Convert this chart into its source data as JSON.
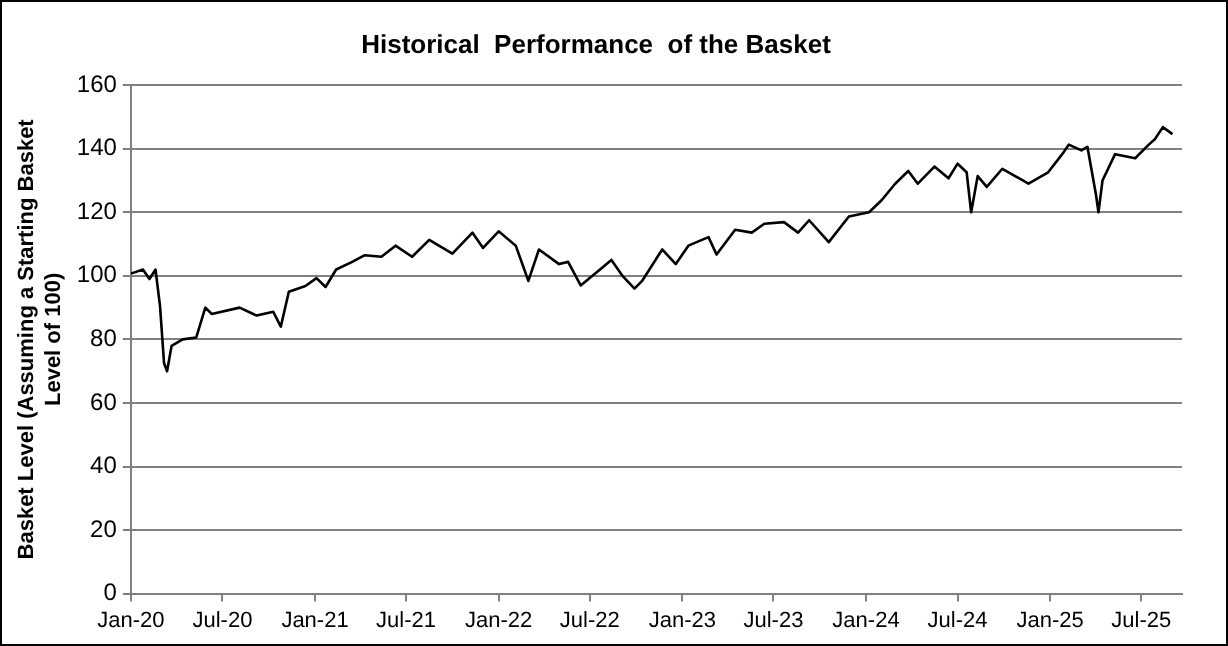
{
  "chart_data": {
    "type": "line",
    "title": "Historical  Performance  of the Basket",
    "ylabel": "Basket Level (Assuming a Starting Basket Level of 100)",
    "x": [
      "2020-01-01",
      "2020-01-25",
      "2020-02-07",
      "2020-02-19",
      "2020-02-28",
      "2020-03-07",
      "2020-03-13",
      "2020-03-22",
      "2020-04-13",
      "2020-05-10",
      "2020-05-28",
      "2020-06-10",
      "2020-08-04",
      "2020-09-07",
      "2020-10-10",
      "2020-10-25",
      "2020-11-10",
      "2020-12-13",
      "2021-01-04",
      "2021-01-22",
      "2021-02-12",
      "2021-03-16",
      "2021-04-10",
      "2021-05-13",
      "2021-06-10",
      "2021-07-13",
      "2021-08-16",
      "2021-10-01",
      "2021-11-10",
      "2021-12-01",
      "2022-01-01",
      "2022-02-04",
      "2022-03-01",
      "2022-03-22",
      "2022-05-01",
      "2022-05-19",
      "2022-06-13",
      "2022-07-25",
      "2022-08-13",
      "2022-09-04",
      "2022-09-28",
      "2022-10-13",
      "2022-11-22",
      "2022-12-19",
      "2023-01-13",
      "2023-02-22",
      "2023-03-10",
      "2023-04-16",
      "2023-05-19",
      "2023-06-13",
      "2023-07-22",
      "2023-08-19",
      "2023-09-10",
      "2023-10-19",
      "2023-11-28",
      "2024-01-07",
      "2024-02-01",
      "2024-02-28",
      "2024-03-25",
      "2024-04-13",
      "2024-05-16",
      "2024-06-13",
      "2024-07-01",
      "2024-07-19",
      "2024-07-28",
      "2024-08-10",
      "2024-08-28",
      "2024-09-28",
      "2024-11-19",
      "2024-12-28",
      "2025-01-25",
      "2025-02-07",
      "2025-03-04",
      "2025-03-16",
      "2025-04-02",
      "2025-04-07",
      "2025-04-15",
      "2025-05-10",
      "2025-06-19",
      "2025-07-16",
      "2025-07-28",
      "2025-08-13",
      "2025-09-01"
    ],
    "series": [
      {
        "color": "#000000",
        "values": [
          100.7,
          102,
          99,
          102,
          90.5,
          72.5,
          70,
          78,
          80,
          80.6,
          90,
          88,
          90,
          87.5,
          88.7,
          84,
          95,
          96.8,
          99.3,
          96.5,
          102,
          104.4,
          106.5,
          106,
          109.5,
          106,
          111.3,
          107,
          113.6,
          108.8,
          114,
          109.5,
          98.4,
          108.3,
          103.7,
          104.4,
          97,
          102.5,
          105,
          100,
          96,
          98.4,
          108.3,
          103.7,
          109.5,
          112.2,
          106.7,
          114.5,
          113.6,
          116.4,
          116.9,
          113.6,
          117.5,
          110.6,
          118.7,
          120,
          123.8,
          129,
          133,
          129,
          134.4,
          130.7,
          135.3,
          132.6,
          120,
          131.4,
          128,
          133.7,
          129,
          132.6,
          138.3,
          141.3,
          139.5,
          140.6,
          125.6,
          120,
          130,
          138.3,
          137,
          141.3,
          143,
          146.8,
          144.6
        ]
      }
    ],
    "xlim": [
      "2020-01-01",
      "2025-09-20"
    ],
    "xticks": [
      {
        "value": "2020-01-01",
        "label": "Jan-20"
      },
      {
        "value": "2020-07-01",
        "label": "Jul-20"
      },
      {
        "value": "2021-01-01",
        "label": "Jan-21"
      },
      {
        "value": "2021-07-01",
        "label": "Jul-21"
      },
      {
        "value": "2022-01-01",
        "label": "Jan-22"
      },
      {
        "value": "2022-07-01",
        "label": "Jul-22"
      },
      {
        "value": "2023-01-01",
        "label": "Jan-23"
      },
      {
        "value": "2023-07-01",
        "label": "Jul-23"
      },
      {
        "value": "2024-01-01",
        "label": "Jan-24"
      },
      {
        "value": "2024-07-01",
        "label": "Jul-24"
      },
      {
        "value": "2025-01-01",
        "label": "Jan-25"
      },
      {
        "value": "2025-07-01",
        "label": "Jul-25"
      }
    ],
    "ylim": [
      0,
      160
    ],
    "yticks": [
      0,
      20,
      40,
      60,
      80,
      100,
      120,
      140,
      160
    ],
    "grid": "y",
    "legend": false,
    "marker": "none",
    "line_style": "solid"
  }
}
